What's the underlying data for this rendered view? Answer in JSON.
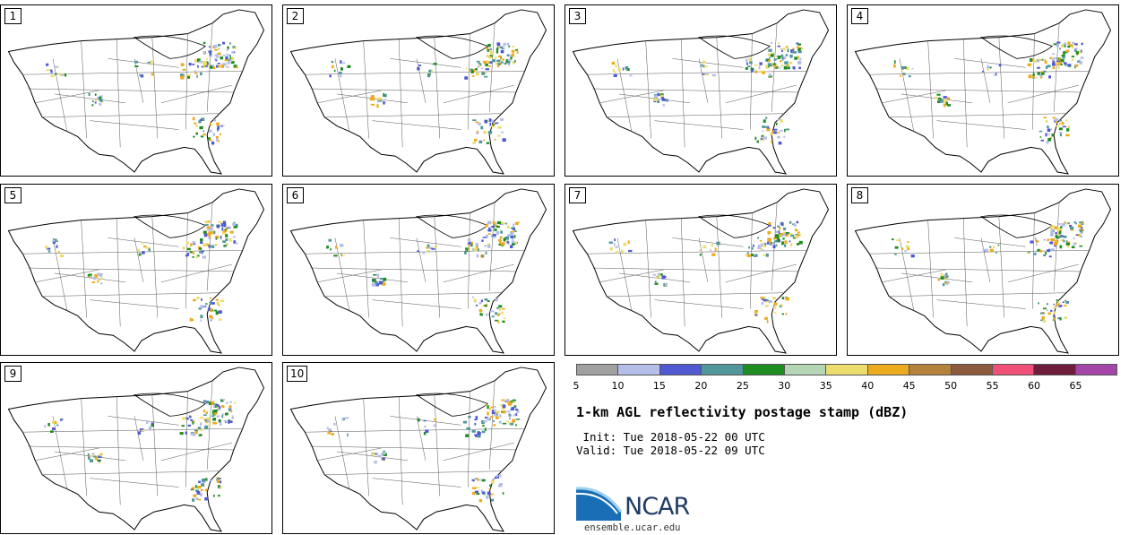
{
  "panels": [
    {
      "label": "1"
    },
    {
      "label": "2"
    },
    {
      "label": "3"
    },
    {
      "label": "4"
    },
    {
      "label": "5"
    },
    {
      "label": "6"
    },
    {
      "label": "7"
    },
    {
      "label": "8"
    },
    {
      "label": "9"
    },
    {
      "label": "10"
    }
  ],
  "colorbar": {
    "colors": [
      "#a0a0a0",
      "#b4bee8",
      "#5058d2",
      "#50969a",
      "#1e8c1e",
      "#b4d6b4",
      "#ecdc6e",
      "#ecaa1e",
      "#b4823c",
      "#8c5a3c",
      "#f05078",
      "#6e1e3c",
      "#a446a8"
    ],
    "ticks": [
      "5",
      "10",
      "15",
      "20",
      "25",
      "30",
      "35",
      "40",
      "45",
      "50",
      "55",
      "60",
      "65"
    ]
  },
  "title": "1-km AGL reflectivity postage stamp (dBZ)",
  "init": " Init: Tue 2018-05-22 00 UTC",
  "valid": "Valid: Tue 2018-05-22 09 UTC",
  "logo": {
    "text": "NCAR",
    "site": "ensemble.ucar.edu"
  }
}
